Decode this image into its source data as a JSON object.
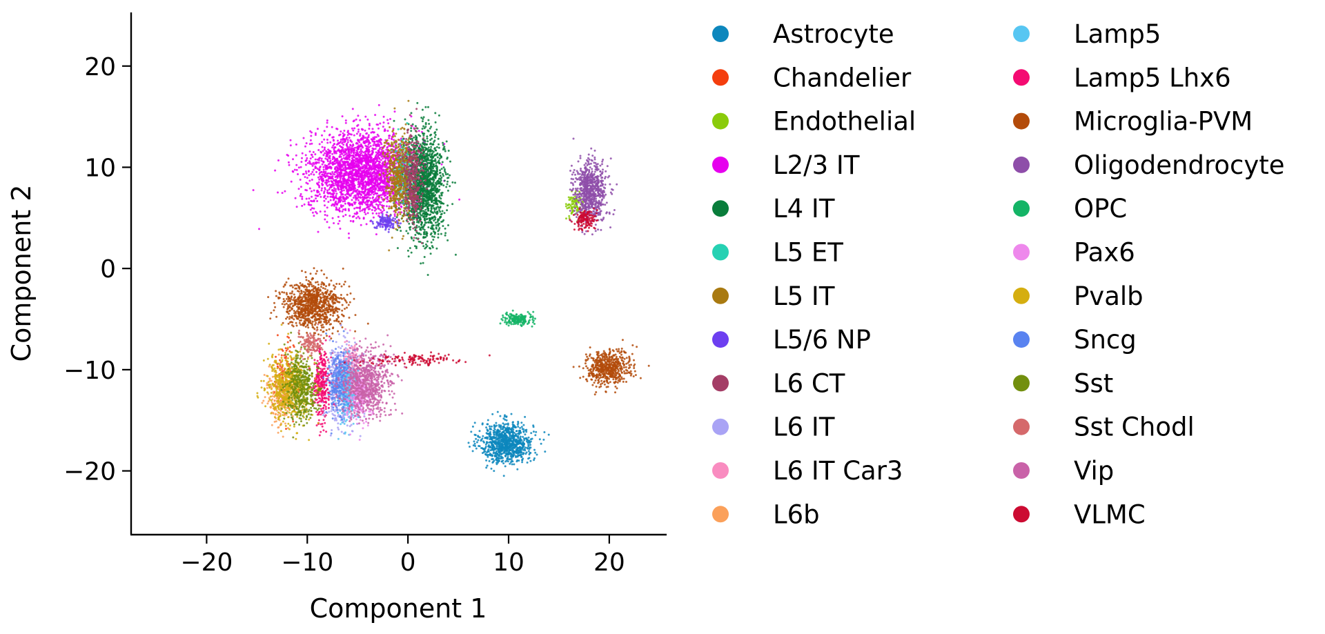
{
  "chart_data": {
    "type": "scatter",
    "title": "",
    "xlabel": "Component 1",
    "ylabel": "Component 2",
    "xlim": [
      -27.5,
      25.7
    ],
    "ylim": [
      -26.3,
      25.3
    ],
    "xticks": [
      -20,
      -10,
      0,
      10,
      20
    ],
    "yticks": [
      -20,
      -10,
      0,
      10,
      20
    ],
    "xtick_labels": [
      "−20",
      "−10",
      "0",
      "10",
      "20"
    ],
    "ytick_labels": [
      "−20",
      "−10",
      "0",
      "10",
      "20"
    ],
    "grid": false,
    "legend_position": "right",
    "legend_columns": 2,
    "series": [
      {
        "name": "Astrocyte",
        "color": "#0d87bd",
        "clusters": [
          {
            "cx": 9.8,
            "cy": -17.2,
            "sx": 1.3,
            "sy": 1.0,
            "n": 900
          }
        ]
      },
      {
        "name": "Chandelier",
        "color": "#f43e0e",
        "clusters": [
          {
            "cx": -12.3,
            "cy": -11.0,
            "sx": 0.5,
            "sy": 1.8,
            "n": 120
          }
        ]
      },
      {
        "name": "Endothelial",
        "color": "#8acb0b",
        "clusters": [
          {
            "cx": 16.6,
            "cy": 6.3,
            "sx": 0.4,
            "sy": 0.6,
            "n": 90
          }
        ]
      },
      {
        "name": "L2/3 IT",
        "color": "#e600ee",
        "clusters": [
          {
            "cx": -4.6,
            "cy": 9.5,
            "sx": 2.6,
            "sy": 2.0,
            "n": 2600
          }
        ]
      },
      {
        "name": "L4 IT",
        "color": "#097d3b",
        "clusters": [
          {
            "cx": 1.6,
            "cy": 8.2,
            "sx": 1.0,
            "sy": 2.6,
            "n": 1500
          }
        ]
      },
      {
        "name": "L5 ET",
        "color": "#26d1b3",
        "clusters": [
          {
            "cx": -0.6,
            "cy": 9.4,
            "sx": 0.4,
            "sy": 1.6,
            "n": 180
          }
        ]
      },
      {
        "name": "L5 IT",
        "color": "#a97a11",
        "clusters": [
          {
            "cx": -1.0,
            "cy": 8.8,
            "sx": 0.7,
            "sy": 2.2,
            "n": 500
          }
        ]
      },
      {
        "name": "L5/6 NP",
        "color": "#6d3ff0",
        "clusters": [
          {
            "cx": -2.2,
            "cy": 4.6,
            "sx": 0.5,
            "sy": 0.4,
            "n": 120
          }
        ]
      },
      {
        "name": "L6 CT",
        "color": "#a43d66",
        "clusters": [
          {
            "cx": 0.5,
            "cy": 8.6,
            "sx": 0.5,
            "sy": 2.2,
            "n": 350
          }
        ]
      },
      {
        "name": "L6 IT",
        "color": "#a9a3f5",
        "clusters": [
          {
            "cx": -6.5,
            "cy": -11.3,
            "sx": 0.8,
            "sy": 1.9,
            "n": 500
          }
        ]
      },
      {
        "name": "L6 IT Car3",
        "color": "#f98cc0",
        "clusters": [
          {
            "cx": -5.6,
            "cy": -10.8,
            "sx": 0.5,
            "sy": 1.6,
            "n": 250
          }
        ]
      },
      {
        "name": "L6b",
        "color": "#fba05a",
        "clusters": [
          {
            "cx": -12.6,
            "cy": -12.6,
            "sx": 0.7,
            "sy": 1.4,
            "n": 220
          }
        ]
      },
      {
        "name": "Lamp5",
        "color": "#57c6f2",
        "clusters": [
          {
            "cx": -6.0,
            "cy": -12.0,
            "sx": 0.5,
            "sy": 1.5,
            "n": 300
          }
        ]
      },
      {
        "name": "Lamp5 Lhx6",
        "color": "#f40b72",
        "clusters": [
          {
            "cx": -8.6,
            "cy": -11.6,
            "sx": 0.4,
            "sy": 1.9,
            "n": 300
          }
        ]
      },
      {
        "name": "Microglia-PVM",
        "color": "#b34b0a",
        "clusters": [
          {
            "cx": -9.6,
            "cy": -3.6,
            "sx": 1.5,
            "sy": 1.2,
            "n": 900
          },
          {
            "cx": 19.8,
            "cy": -9.8,
            "sx": 1.1,
            "sy": 0.9,
            "n": 550
          }
        ]
      },
      {
        "name": "Oligodendrocyte",
        "color": "#8e4ea9",
        "clusters": [
          {
            "cx": 18.1,
            "cy": 7.6,
            "sx": 0.8,
            "sy": 1.5,
            "n": 700
          }
        ]
      },
      {
        "name": "OPC",
        "color": "#14b466",
        "clusters": [
          {
            "cx": 11.0,
            "cy": -5.0,
            "sx": 0.8,
            "sy": 0.3,
            "n": 180
          }
        ]
      },
      {
        "name": "Pax6",
        "color": "#ee88ec",
        "clusters": [
          {
            "cx": -4.8,
            "cy": -12.8,
            "sx": 0.6,
            "sy": 1.3,
            "n": 200
          }
        ]
      },
      {
        "name": "Pvalb",
        "color": "#d5ae10",
        "clusters": [
          {
            "cx": -11.8,
            "cy": -11.8,
            "sx": 1.1,
            "sy": 1.6,
            "n": 600
          }
        ]
      },
      {
        "name": "Sncg",
        "color": "#5983f0",
        "clusters": [
          {
            "cx": -6.9,
            "cy": -11.2,
            "sx": 0.5,
            "sy": 1.6,
            "n": 250
          }
        ]
      },
      {
        "name": "Sst",
        "color": "#728f0e",
        "clusters": [
          {
            "cx": -10.6,
            "cy": -11.8,
            "sx": 0.8,
            "sy": 1.6,
            "n": 450
          }
        ]
      },
      {
        "name": "Sst Chodl",
        "color": "#d5696b",
        "clusters": [
          {
            "cx": -9.6,
            "cy": -7.4,
            "sx": 0.6,
            "sy": 0.6,
            "n": 120
          }
        ]
      },
      {
        "name": "Vip",
        "color": "#c962a8",
        "clusters": [
          {
            "cx": -4.2,
            "cy": -11.2,
            "sx": 1.2,
            "sy": 1.6,
            "n": 750
          }
        ]
      },
      {
        "name": "VLMC",
        "color": "#cc0b32",
        "clusters": [
          {
            "cx": 17.6,
            "cy": 4.8,
            "sx": 0.5,
            "sy": 0.5,
            "n": 150
          },
          {
            "cx": 0.5,
            "cy": -9.0,
            "sx": 2.4,
            "sy": 0.25,
            "n": 130
          }
        ]
      }
    ]
  }
}
